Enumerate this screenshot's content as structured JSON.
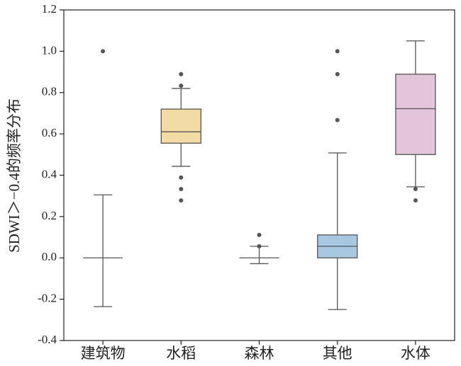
{
  "chart_data": {
    "type": "box",
    "y_label": "SDWI＞−0.4的频率分布",
    "categories": [
      "建筑物",
      "水稻",
      "森林",
      "其他",
      "水体"
    ],
    "boxes": [
      {
        "min": -0.236,
        "q1": 0,
        "median": 0,
        "q3": 0,
        "max": 0.305,
        "outliers": [
          1.0
        ],
        "color": "#ffffff"
      },
      {
        "min": 0.443,
        "q1": 0.555,
        "median": 0.61,
        "q3": 0.72,
        "max": 0.82,
        "outliers": [
          0.889,
          0.833,
          0.389,
          0.333,
          0.278
        ],
        "color": "#f2dca4"
      },
      {
        "min": -0.028,
        "q1": 0,
        "median": 0,
        "q3": 0,
        "max": 0.056,
        "outliers": [
          0.111,
          0.056
        ],
        "color": "#ffffff"
      },
      {
        "min": -0.25,
        "q1": 0,
        "median": 0.056,
        "q3": 0.111,
        "max": 0.508,
        "outliers": [
          1.0,
          0.889,
          0.667
        ],
        "color": "#a7c8e0"
      },
      {
        "min": 0.344,
        "q1": 0.5,
        "median": 0.722,
        "q3": 0.889,
        "max": 1.05,
        "outliers": [
          0.333,
          0.278
        ],
        "color": "#e3c4db"
      }
    ],
    "ylim": [
      -0.4,
      1.2
    ],
    "yticks": [
      {
        "value": -0.4,
        "label": "-0.4"
      },
      {
        "value": -0.2,
        "label": "-0.2"
      },
      {
        "value": 0.0,
        "label": "0.0"
      },
      0.2,
      0.4,
      0.6,
      0.8,
      {
        "value": 1.0,
        "label": "1.0"
      },
      1.2
    ],
    "grid": false
  }
}
